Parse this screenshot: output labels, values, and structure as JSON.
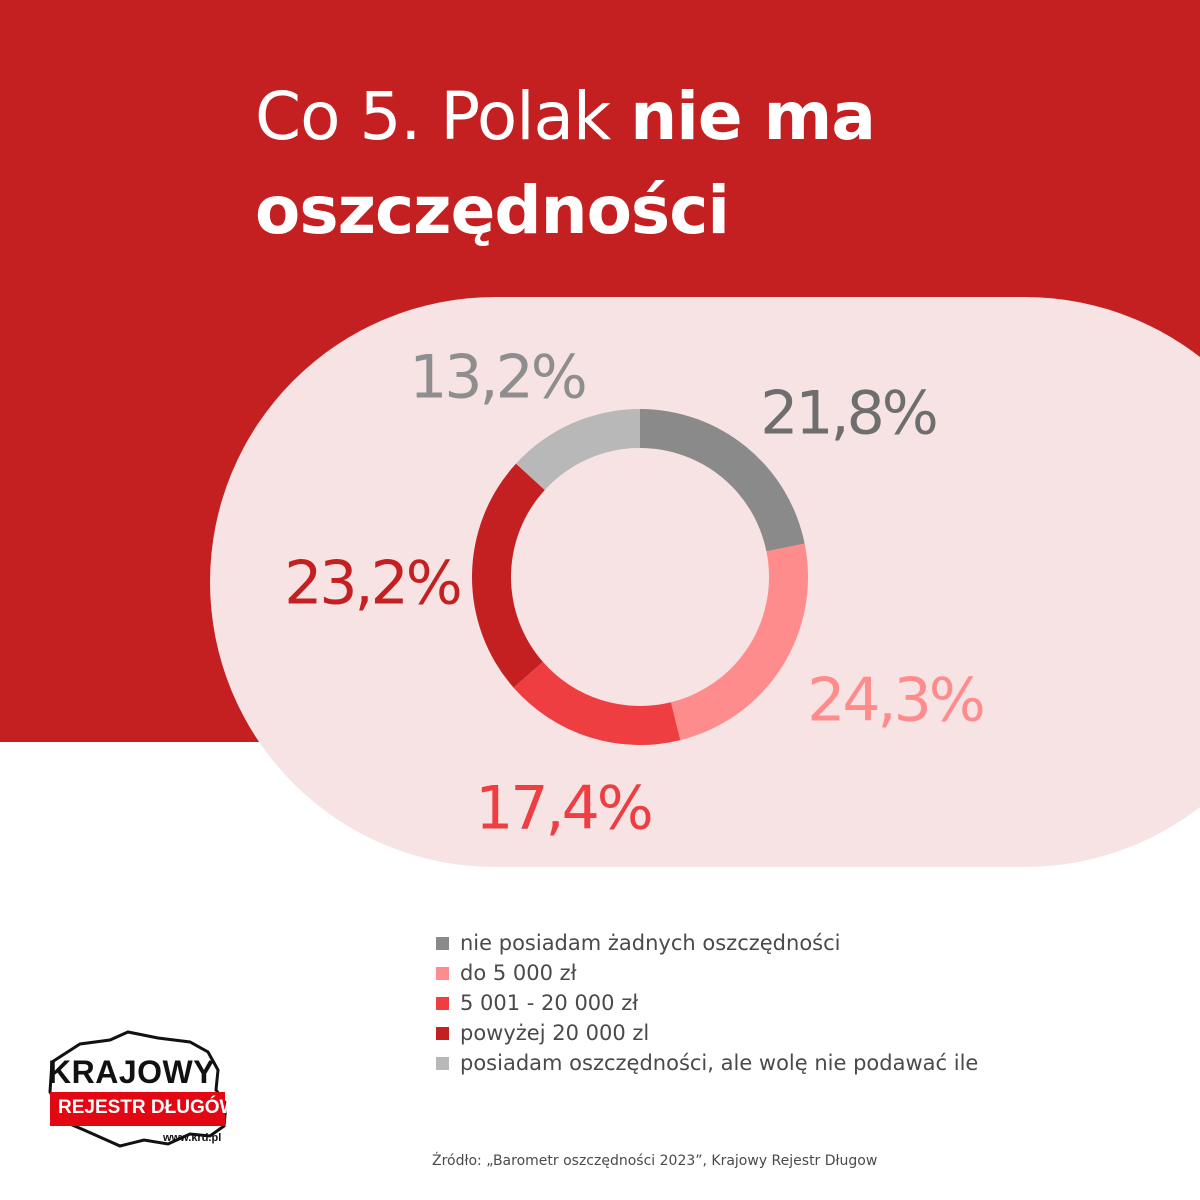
{
  "title": {
    "light": "Co 5. Polak ",
    "bold_line1": "nie ma",
    "bold_line2": "oszczędności"
  },
  "chart_data": {
    "type": "pie",
    "donut": true,
    "slices": [
      {
        "label": "nie posiadam żadnych oszczędności",
        "value": 21.8,
        "display": "21,8%",
        "color": "#8a8a8a",
        "label_color": "#6e6e6e"
      },
      {
        "label": "do 5 000 zł",
        "value": 24.3,
        "display": "24,3%",
        "color": "#ff8c8c",
        "label_color": "#ff8c8c"
      },
      {
        "label": "5 001 - 20 000 zł",
        "value": 17.4,
        "display": "17,4%",
        "color": "#ee3e41",
        "label_color": "#ee3e41"
      },
      {
        "label": "powyżej 20 000 zl",
        "value": 23.2,
        "display": "23,2%",
        "color": "#c42021",
        "label_color": "#c42021"
      },
      {
        "label": "posiadam oszczędności, ale wolę nie podawać ile",
        "value": 13.2,
        "display": "13,2%",
        "color": "#b8b8b8",
        "label_color": "#8e8e8e"
      }
    ],
    "legend_placement": "bottom"
  },
  "logo": {
    "line1": "KRAJOWY",
    "line2": "REJESTR DŁUGÓW",
    "url": "www.krd.pl",
    "icon": "poland-map-icon"
  },
  "source": "Źródło: „Barometr oszczędności 2023”, Krajowy Rejestr Długow",
  "colors": {
    "brand_red": "#c42021",
    "pill": "#f7e3e4"
  }
}
